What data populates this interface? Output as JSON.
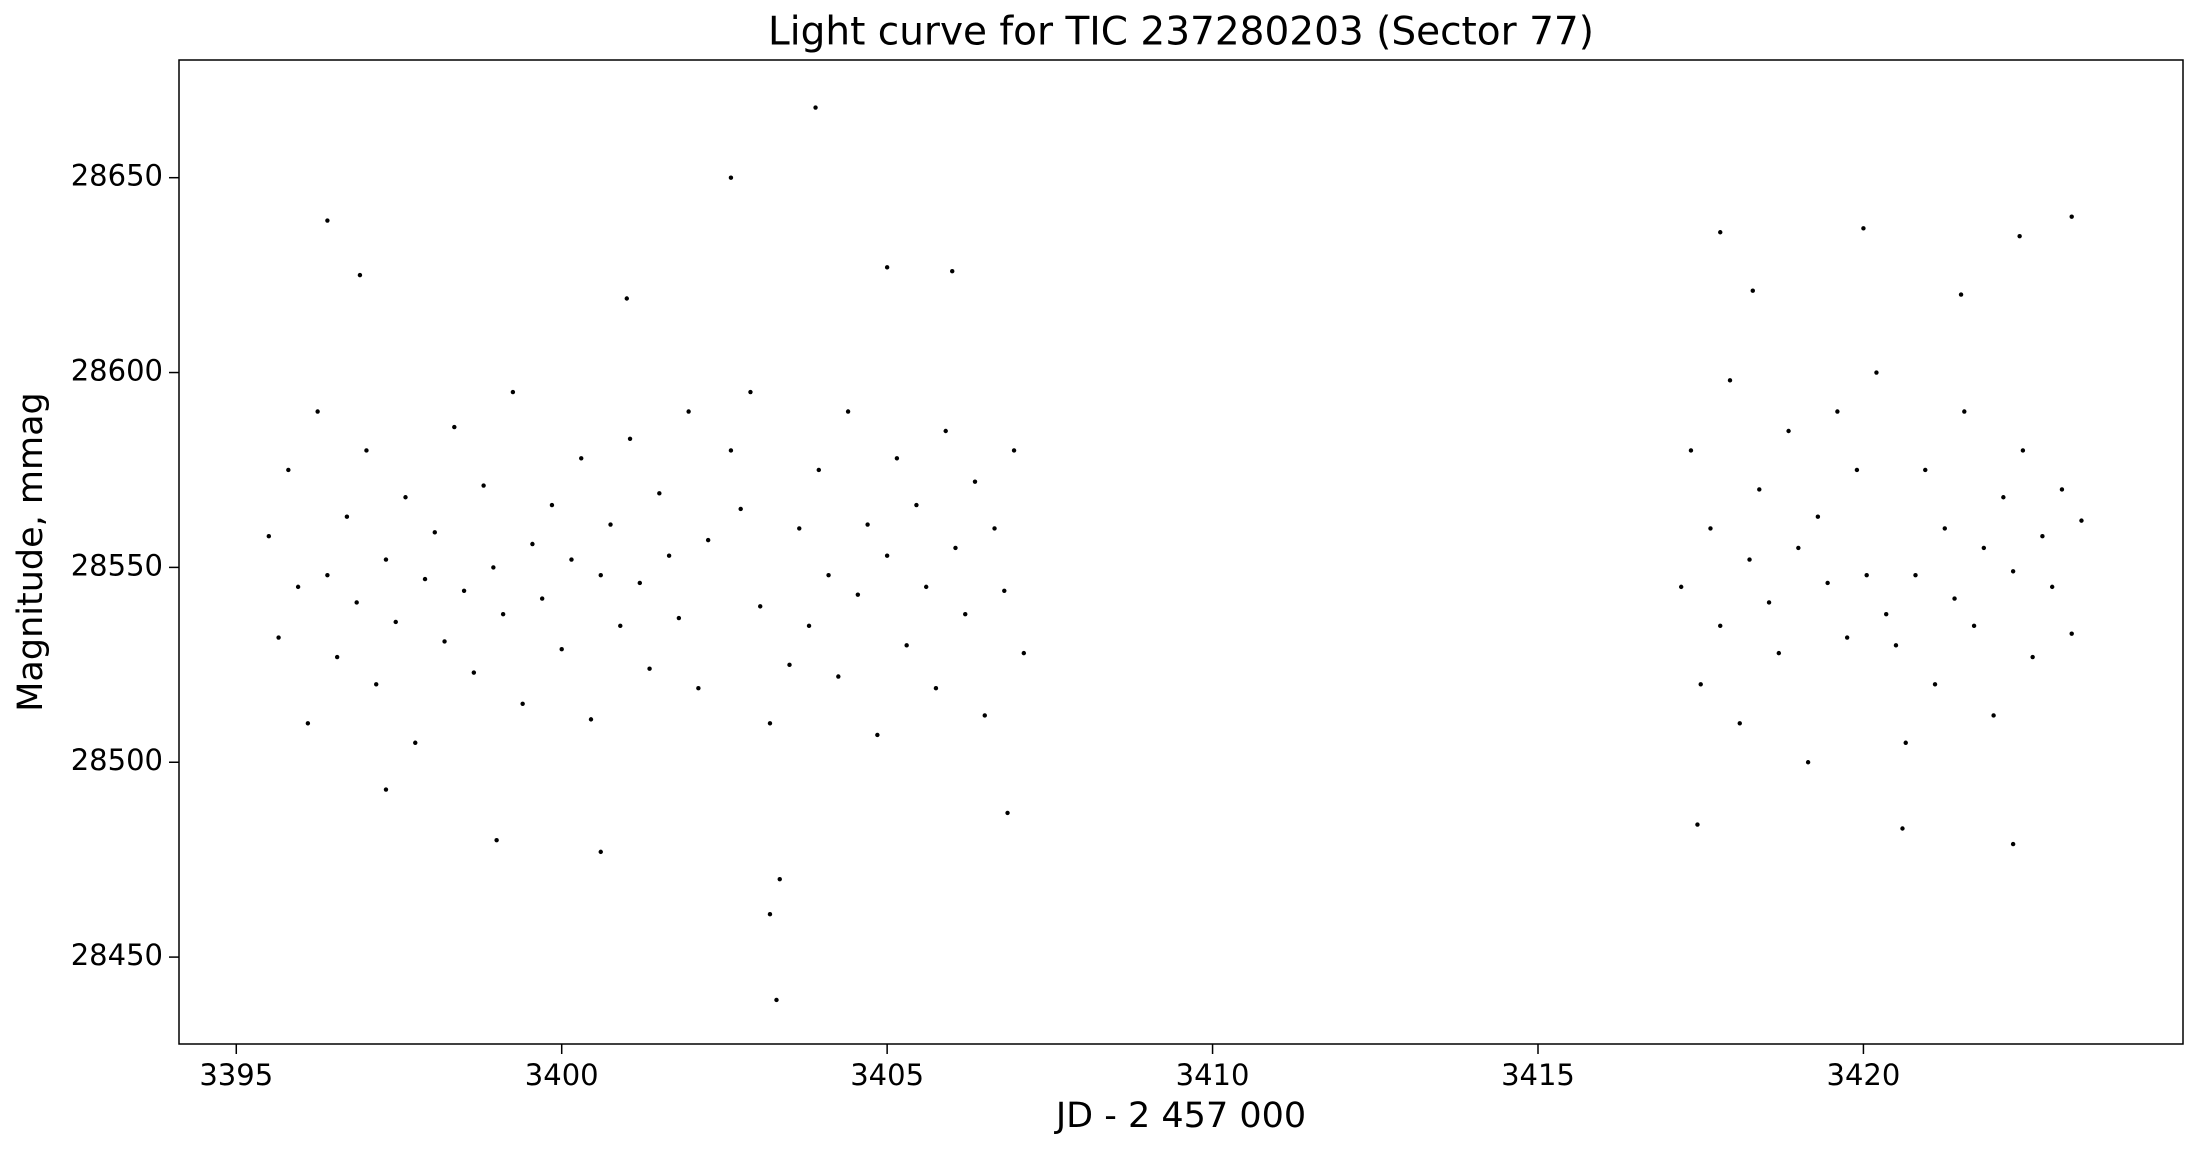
{
  "chart_data": {
    "type": "scatter",
    "title": "Light curve for TIC 237280203 (Sector 77)",
    "x_label": "JD - 2 457 000",
    "y_label": "Magnitude, mmag",
    "x": [
      3395.5,
      3395.65,
      3395.8,
      3395.95,
      3396.1,
      3396.25,
      3396.4,
      3396.55,
      3396.7,
      3396.85,
      3397,
      3397.15,
      3397.3,
      3397.45,
      3397.6,
      3397.75,
      3397.9,
      3398.05,
      3398.2,
      3398.35,
      3398.5,
      3398.65,
      3398.8,
      3398.95,
      3399.1,
      3399.25,
      3399.4,
      3399.55,
      3399.7,
      3399.85,
      3400,
      3400.15,
      3400.3,
      3400.45,
      3400.6,
      3400.75,
      3400.9,
      3401.05,
      3401.2,
      3401.35,
      3401.5,
      3401.65,
      3401.8,
      3401.95,
      3402.1,
      3402.25,
      3402.6,
      3402.75,
      3402.9,
      3403.05,
      3403.2,
      3403.35,
      3403.5,
      3403.65,
      3403.8,
      3403.95,
      3404.1,
      3404.25,
      3404.4,
      3404.55,
      3404.7,
      3404.85,
      3405,
      3405.15,
      3405.3,
      3405.45,
      3405.6,
      3405.75,
      3405.9,
      3406.05,
      3406.2,
      3406.35,
      3406.5,
      3406.65,
      3406.8,
      3406.95,
      3407.1,
      3417.2,
      3417.35,
      3417.5,
      3417.65,
      3417.8,
      3417.95,
      3418.1,
      3418.25,
      3418.4,
      3418.55,
      3418.7,
      3418.85,
      3419,
      3419.15,
      3419.3,
      3419.45,
      3419.6,
      3419.75,
      3419.9,
      3420.05,
      3420.2,
      3420.35,
      3420.5,
      3420.65,
      3420.8,
      3420.95,
      3421.1,
      3421.25,
      3421.4,
      3421.55,
      3421.7,
      3421.85,
      3422,
      3422.15,
      3422.3,
      3422.45,
      3422.6,
      3422.75,
      3422.9,
      3423.05,
      3423.2,
      3423.35,
      3396.4,
      3396.9,
      3399,
      3400.6,
      3401,
      3397.3,
      3402.6,
      3403.3,
      3403.2,
      3403.9,
      3405,
      3406,
      3406.85,
      3417.8,
      3418.3,
      3420,
      3417.45,
      3420.6,
      3422.4,
      3423.2,
      3422.3,
      3421.5
    ],
    "values": [
      28558,
      28532,
      28575,
      28545,
      28510,
      28590,
      28548,
      28527,
      28563,
      28541,
      28580,
      28520,
      28552,
      28536,
      28568,
      28505,
      28547,
      28559,
      28531,
      28586,
      28544,
      28523,
      28571,
      28550,
      28538,
      28595,
      28515,
      28556,
      28542,
      28566,
      28529,
      28552,
      28578,
      28511,
      28548,
      28561,
      28535,
      28583,
      28546,
      28524,
      28569,
      28553,
      28537,
      28590,
      28519,
      28557,
      28580,
      28565,
      28595,
      28540,
      28510,
      28470,
      28525,
      28560,
      28535,
      28575,
      28548,
      28522,
      28590,
      28543,
      28561,
      28507,
      28553,
      28578,
      28530,
      28566,
      28545,
      28519,
      28585,
      28555,
      28538,
      28572,
      28512,
      28560,
      28544,
      28580,
      28528,
      28545,
      28580,
      28520,
      28560,
      28535,
      28598,
      28510,
      28552,
      28570,
      28541,
      28528,
      28585,
      28555,
      28500,
      28563,
      28546,
      28590,
      28532,
      28575,
      28548,
      28600,
      28538,
      28530,
      28505,
      28548,
      28575,
      28520,
      28560,
      28542,
      28590,
      28535,
      28555,
      28512,
      28568,
      28549,
      28580,
      28527,
      28558,
      28545,
      28570,
      28533,
      28562,
      28639,
      28625,
      28480,
      28477,
      28619,
      28493,
      28650,
      28439,
      28461,
      28668,
      28627,
      28626,
      28487,
      28636,
      28621,
      28637,
      28484,
      28483,
      28635,
      28640,
      28479,
      28620
    ],
    "color": "#000000",
    "xlim": [
      3394.12,
      3424.91
    ],
    "xticks": [
      3395,
      3400,
      3405,
      3410,
      3415,
      3420
    ],
    "ylim": [
      28427.7,
      28680.2
    ],
    "yticks": [
      28450,
      28500,
      28550,
      28600,
      28650
    ],
    "grid": false
  }
}
